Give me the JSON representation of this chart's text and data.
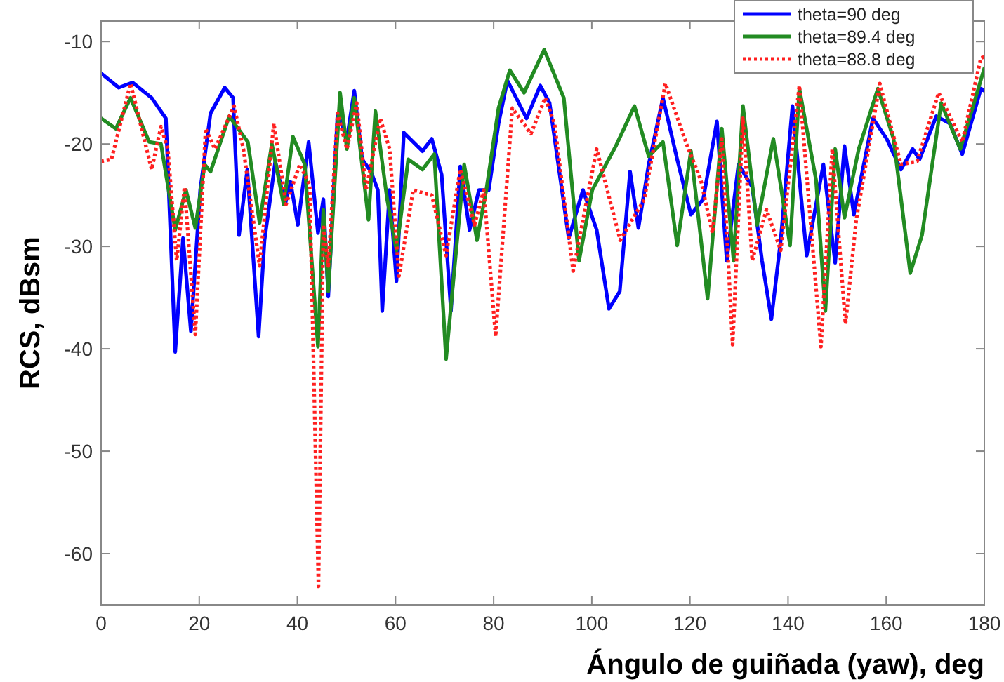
{
  "chart_data": {
    "type": "line",
    "xlabel": "Ángulo de guiñada (yaw), deg",
    "ylabel": "RCS, dBsm",
    "xlim": [
      0,
      180
    ],
    "ylim": [
      -65,
      -8
    ],
    "xticks": [
      0,
      20,
      40,
      60,
      80,
      100,
      120,
      140,
      160,
      180
    ],
    "yticks": [
      -60,
      -50,
      -40,
      -30,
      -20,
      -10
    ],
    "grid": false,
    "legend": "top right",
    "marker": "none",
    "series": [
      {
        "name": "theta=90 deg",
        "color": "#0000ff",
        "line_style": "solid",
        "x": [
          0,
          3.6,
          6.4,
          10.3,
          13.2,
          15.1,
          16.7,
          18.3,
          20.2,
          22.3,
          25.2,
          26.9,
          28.1,
          29.8,
          32.1,
          33.3,
          35.5,
          37.5,
          38.6,
          40.1,
          42.3,
          44.2,
          45.3,
          46.3,
          48.2,
          50.1,
          51.6,
          53.2,
          55,
          56.4,
          57.3,
          58.8,
          60.2,
          61.7,
          65.5,
          67.4,
          69.4,
          71.3,
          73.2,
          75.1,
          77,
          79,
          81,
          82.8,
          86.7,
          89.5,
          91.4,
          95.3,
          98.2,
          101,
          103.5,
          105.7,
          107.8,
          109.5,
          111.6,
          114.5,
          117.4,
          120.2,
          122.7,
          125.5,
          127.5,
          129.9,
          132.7,
          134.7,
          136.6,
          138.5,
          140.9,
          143.8,
          147.2,
          149.6,
          151.5,
          153.4,
          157.3,
          160.1,
          163,
          165.4,
          166.8,
          170.2,
          173,
          175.5,
          179.3,
          180
        ],
        "values": [
          -13.1,
          -14.5,
          -14,
          -15.5,
          -17.5,
          -40.3,
          -29.2,
          -38.3,
          -24.5,
          -17,
          -14.5,
          -15.5,
          -28.9,
          -22.5,
          -38.8,
          -29.4,
          -21.7,
          -25.9,
          -23.7,
          -27.9,
          -19.8,
          -28.7,
          -25.4,
          -34.9,
          -17,
          -19.5,
          -14.8,
          -21.5,
          -22.7,
          -24.5,
          -36.3,
          -24.5,
          -33.4,
          -18.9,
          -20.7,
          -19.5,
          -23,
          -36.3,
          -22.2,
          -28.4,
          -24.5,
          -24.5,
          -18,
          -13.8,
          -17.5,
          -14.3,
          -16,
          -29.2,
          -24.5,
          -28.4,
          -36.1,
          -34.4,
          -22.7,
          -28.2,
          -22,
          -15.5,
          -21.5,
          -26.9,
          -25.4,
          -17.8,
          -31.4,
          -22,
          -24.2,
          -31.4,
          -37.1,
          -29.4,
          -16.3,
          -30.9,
          -22,
          -31.6,
          -20.2,
          -26.9,
          -17.5,
          -19.5,
          -22.5,
          -20.5,
          -21.5,
          -17.3,
          -18,
          -21,
          -14.6,
          -14.8
        ]
      },
      {
        "name": "theta=89.4 deg",
        "color": "#228b22",
        "line_style": "solid",
        "x": [
          0,
          3,
          6,
          9.8,
          12.2,
          15.1,
          17.3,
          19.2,
          21.1,
          22.3,
          26.1,
          29.9,
          32.3,
          34.8,
          37.2,
          39.1,
          41.5,
          44.2,
          45.3,
          46.3,
          48.7,
          50.1,
          51.6,
          54.5,
          55.9,
          58.3,
          60.2,
          62.6,
          65.5,
          67.9,
          70.3,
          74,
          76.6,
          78.5,
          81,
          83.3,
          86.2,
          90.3,
          94.3,
          97.4,
          100.1,
          104.9,
          108.7,
          111.6,
          114.5,
          117.4,
          120.2,
          123.6,
          126.5,
          128.9,
          130.8,
          133.7,
          137,
          140.4,
          142.3,
          145.7,
          147.6,
          149.6,
          151.5,
          154.4,
          158.3,
          161.5,
          164.9,
          167.3,
          171.2,
          175.1,
          180
        ],
        "values": [
          -17.5,
          -18.5,
          -15.5,
          -19.8,
          -20,
          -28.4,
          -24.5,
          -28.2,
          -22,
          -22.7,
          -17.3,
          -19.8,
          -27.7,
          -20,
          -25.9,
          -19.3,
          -22,
          -39.8,
          -26.4,
          -34.4,
          -15,
          -20.5,
          -15.5,
          -27.4,
          -16.8,
          -25.4,
          -30.4,
          -21.5,
          -22.5,
          -21,
          -41,
          -22,
          -29.4,
          -24.5,
          -16.5,
          -12.8,
          -15,
          -10.8,
          -15.5,
          -31.4,
          -24.5,
          -20.2,
          -16.3,
          -21.2,
          -19.8,
          -29.9,
          -20.7,
          -35.1,
          -18.5,
          -31.4,
          -16.3,
          -27.9,
          -19.5,
          -29.9,
          -14.6,
          -23.5,
          -36.3,
          -20.5,
          -27.2,
          -20.5,
          -14.6,
          -19.5,
          -32.6,
          -28.9,
          -16,
          -20.5,
          -12.6
        ]
      },
      {
        "name": "theta=88.8 deg",
        "color": "#ff2020",
        "line_style": "dotted",
        "x": [
          0,
          2.1,
          6,
          10.3,
          12.2,
          13.6,
          15.4,
          17,
          19.2,
          21.3,
          23.2,
          27.1,
          29,
          32.3,
          35.2,
          37.7,
          40.5,
          42.5,
          44.3,
          45.3,
          46.3,
          48.2,
          50.1,
          52.1,
          54,
          56.9,
          58.8,
          60.7,
          63.6,
          67.4,
          70.3,
          73.2,
          76.1,
          78,
          80.4,
          83.8,
          87.6,
          90.5,
          92.4,
          96.2,
          101,
          105.8,
          110.7,
          115,
          119.3,
          122.2,
          124.6,
          126.5,
          128.7,
          130.8,
          132.7,
          135.6,
          138.5,
          142.3,
          144.2,
          146.7,
          149,
          151.7,
          153.9,
          158.7,
          163,
          166.3,
          170.7,
          175.5,
          179.3,
          180
        ],
        "values": [
          -21.7,
          -21.5,
          -14.1,
          -22.5,
          -18.3,
          -20.5,
          -31.4,
          -24.2,
          -38.6,
          -18.5,
          -20.5,
          -16.3,
          -20.5,
          -31.9,
          -18,
          -25.9,
          -22,
          -24,
          -63.2,
          -27.9,
          -31.9,
          -17,
          -20.5,
          -16,
          -24.5,
          -17.5,
          -20.5,
          -32.9,
          -24.5,
          -25,
          -30.9,
          -22.5,
          -27.9,
          -24.5,
          -38.8,
          -16.5,
          -19,
          -15.5,
          -18,
          -32.4,
          -20.5,
          -29.4,
          -25.4,
          -14.1,
          -20,
          -23.5,
          -28.7,
          -19.5,
          -39.6,
          -17.5,
          -31.4,
          -26.4,
          -30.4,
          -14.3,
          -25.4,
          -39.8,
          -20.5,
          -37.6,
          -27.4,
          -14.1,
          -22,
          -21.7,
          -15,
          -19.8,
          -11.6,
          -11.5
        ]
      }
    ]
  }
}
